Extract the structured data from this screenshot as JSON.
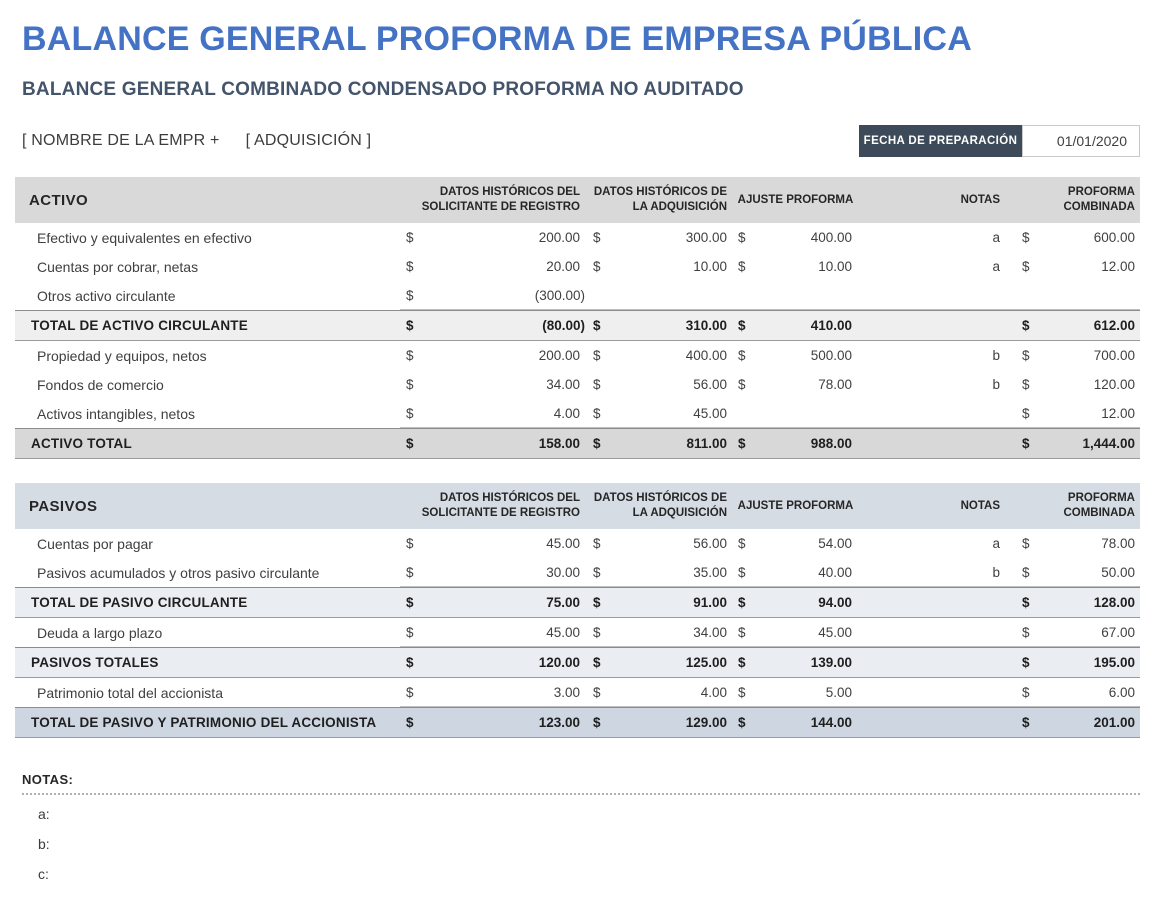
{
  "colors": {
    "title_blue": "#4472C4",
    "subtitle_slate": "#44546A",
    "prep_box_bg": "#3D4A59",
    "activo_header_bg": "#D9D9D9",
    "activo_subtotal_bg": "#EFEFEF",
    "activo_total_bg": "#D8D8D8",
    "pasivos_header_bg": "#D6DCE4",
    "pasivos_subtotal_bg": "#EAEEF2",
    "pasivos_total_bg": "#CDD6E1"
  },
  "currency": "$",
  "header": {
    "title": "BALANCE GENERAL PROFORMA DE EMPRESA PÚBLICA",
    "subtitle": "BALANCE GENERAL COMBINADO CONDENSADO PROFORMA NO AUDITADO",
    "company_placeholder": "[ NOMBRE DE LA EMPR +",
    "acquisition_placeholder": "[ ADQUISICIÓN ]",
    "prep_date_label": "FECHA DE PREPARACIÓN",
    "prep_date_value": "01/01/2020"
  },
  "columns": [
    "DATOS HISTÓRICOS DEL SOLICITANTE DE REGISTRO",
    "DATOS HISTÓRICOS DE LA ADQUISICIÓN",
    "AJUSTE PROFORMA",
    "NOTAS",
    "PROFORMA COMBINADA"
  ],
  "tables": [
    {
      "id": "activo",
      "title": "ACTIVO",
      "theme": "gray",
      "rows": [
        {
          "type": "data",
          "label": "Efectivo y equivalentes en efectivo",
          "values": [
            "200.00",
            "300.00",
            "400.00"
          ],
          "nota": "a",
          "proforma": "600.00"
        },
        {
          "type": "data",
          "label": "Cuentas por cobrar, netas",
          "values": [
            "20.00",
            "10.00",
            "10.00"
          ],
          "nota": "a",
          "proforma": "12.00"
        },
        {
          "type": "data",
          "underline": true,
          "label": "Otros activo circulante",
          "values": [
            "(300.00)",
            "",
            ""
          ],
          "nota": "",
          "proforma": ""
        },
        {
          "type": "subtotal",
          "label": "TOTAL DE ACTIVO CIRCULANTE",
          "values": [
            "(80.00)",
            "310.00",
            "410.00"
          ],
          "nota": "",
          "proforma": "612.00"
        },
        {
          "type": "data",
          "label": "Propiedad y equipos, netos",
          "values": [
            "200.00",
            "400.00",
            "500.00"
          ],
          "nota": "b",
          "proforma": "700.00"
        },
        {
          "type": "data",
          "label": "Fondos de comercio",
          "values": [
            "34.00",
            "56.00",
            "78.00"
          ],
          "nota": "b",
          "proforma": "120.00"
        },
        {
          "type": "data",
          "underline": true,
          "label": "Activos intangibles, netos",
          "values": [
            "4.00",
            "45.00",
            ""
          ],
          "nota": "",
          "proforma": "12.00"
        },
        {
          "type": "grand",
          "label": "ACTIVO TOTAL",
          "values": [
            "158.00",
            "811.00",
            "988.00"
          ],
          "nota": "",
          "proforma": "1,444.00"
        }
      ]
    },
    {
      "id": "pasivos",
      "title": "PASIVOS",
      "theme": "blue",
      "rows": [
        {
          "type": "data",
          "label": "Cuentas por pagar",
          "values": [
            "45.00",
            "56.00",
            "54.00"
          ],
          "nota": "a",
          "proforma": "78.00"
        },
        {
          "type": "data",
          "underline": true,
          "label": "Pasivos acumulados y otros pasivo circulante",
          "values": [
            "30.00",
            "35.00",
            "40.00"
          ],
          "nota": "b",
          "proforma": "50.00"
        },
        {
          "type": "subtotal",
          "label": "TOTAL DE PASIVO CIRCULANTE",
          "values": [
            "75.00",
            "91.00",
            "94.00"
          ],
          "nota": "",
          "proforma": "128.00"
        },
        {
          "type": "data",
          "underline": true,
          "label": "Deuda a largo plazo",
          "values": [
            "45.00",
            "34.00",
            "45.00"
          ],
          "nota": "",
          "proforma": "67.00"
        },
        {
          "type": "subtotal",
          "label": "PASIVOS TOTALES",
          "values": [
            "120.00",
            "125.00",
            "139.00"
          ],
          "nota": "",
          "proforma": "195.00"
        },
        {
          "type": "data",
          "underline": true,
          "label": "Patrimonio total del accionista",
          "values": [
            "3.00",
            "4.00",
            "5.00"
          ],
          "nota": "",
          "proforma": "6.00"
        },
        {
          "type": "grand",
          "label": "TOTAL DE PASIVO Y PATRIMONIO DEL ACCIONISTA",
          "values": [
            "123.00",
            "129.00",
            "144.00"
          ],
          "nota": "",
          "proforma": "201.00"
        }
      ]
    }
  ],
  "notes": {
    "label": "NOTAS:",
    "items": [
      "a:",
      "b:",
      "c:"
    ]
  }
}
